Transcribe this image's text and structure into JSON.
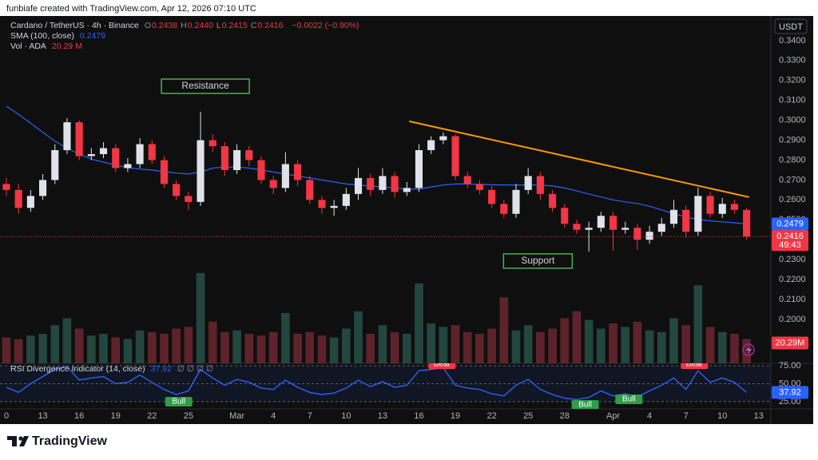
{
  "header": {
    "credit": "funbiafe created with TradingView.com, Apr 12, 2026 07:10 UTC"
  },
  "footer": {
    "brand": "TradingView"
  },
  "chart_data": [
    {
      "type": "candlestick",
      "legend": {
        "symbol": "Cardano / TetherUS · 4h · Binance",
        "fields": [
          {
            "key": "O",
            "value": "0.2438"
          },
          {
            "key": "H",
            "value": "0.2440"
          },
          {
            "key": "L",
            "value": "0.2415"
          },
          {
            "key": "C",
            "value": "0.2416"
          }
        ],
        "change": "−0.0022 (−0.90%)"
      },
      "y_unit": "USDT",
      "up_color": "#dfe2ea",
      "down_color": "#f23645",
      "x": [
        0,
        1,
        2,
        3,
        4,
        5,
        6,
        7,
        8,
        9,
        10,
        11,
        12,
        13,
        14,
        15,
        16,
        17,
        18,
        19,
        20,
        21,
        22,
        23,
        24,
        25,
        26,
        27,
        28,
        29,
        30,
        31,
        32,
        33,
        34,
        35,
        36,
        37,
        38,
        39,
        40,
        41,
        42,
        43,
        44,
        45,
        46,
        47,
        48,
        49,
        50,
        51,
        52,
        53,
        54,
        55,
        56,
        57,
        58,
        59,
        60,
        61
      ],
      "open": [
        0.268,
        0.265,
        0.256,
        0.262,
        0.27,
        0.285,
        0.299,
        0.282,
        0.283,
        0.286,
        0.276,
        0.278,
        0.288,
        0.28,
        0.268,
        0.262,
        0.259,
        0.29,
        0.287,
        0.275,
        0.285,
        0.28,
        0.27,
        0.266,
        0.278,
        0.27,
        0.26,
        0.256,
        0.257,
        0.263,
        0.271,
        0.265,
        0.272,
        0.264,
        0.266,
        0.285,
        0.29,
        0.292,
        0.272,
        0.268,
        0.265,
        0.258,
        0.253,
        0.265,
        0.272,
        0.263,
        0.256,
        0.248,
        0.245,
        0.246,
        0.252,
        0.245,
        0.246,
        0.24,
        0.244,
        0.248,
        0.255,
        0.244,
        0.262,
        0.253,
        0.258,
        0.255
      ],
      "high": [
        0.271,
        0.268,
        0.265,
        0.273,
        0.288,
        0.301,
        0.3,
        0.286,
        0.289,
        0.288,
        0.281,
        0.291,
        0.29,
        0.282,
        0.27,
        0.264,
        0.3043,
        0.293,
        0.289,
        0.288,
        0.287,
        0.282,
        0.272,
        0.284,
        0.28,
        0.272,
        0.262,
        0.26,
        0.266,
        0.276,
        0.273,
        0.276,
        0.274,
        0.269,
        0.288,
        0.292,
        0.2939,
        0.293,
        0.274,
        0.27,
        0.267,
        0.26,
        0.268,
        0.276,
        0.274,
        0.265,
        0.258,
        0.25,
        0.249,
        0.254,
        0.254,
        0.249,
        0.248,
        0.247,
        0.251,
        0.26,
        0.257,
        0.2662,
        0.264,
        0.261,
        0.26,
        0.256
      ],
      "low": [
        0.262,
        0.253,
        0.254,
        0.26,
        0.268,
        0.283,
        0.28,
        0.28,
        0.281,
        0.274,
        0.274,
        0.276,
        0.278,
        0.266,
        0.26,
        0.255,
        0.257,
        0.284,
        0.272,
        0.273,
        0.277,
        0.268,
        0.263,
        0.264,
        0.267,
        0.258,
        0.253,
        0.252,
        0.255,
        0.26,
        0.262,
        0.263,
        0.261,
        0.262,
        0.264,
        0.283,
        0.288,
        0.27,
        0.266,
        0.263,
        0.256,
        0.251,
        0.251,
        0.263,
        0.26,
        0.254,
        0.246,
        0.243,
        0.2341,
        0.244,
        0.2345,
        0.243,
        0.235,
        0.238,
        0.242,
        0.246,
        0.241,
        0.242,
        0.251,
        0.251,
        0.253,
        0.24
      ],
      "close": [
        0.265,
        0.256,
        0.262,
        0.27,
        0.285,
        0.299,
        0.282,
        0.283,
        0.286,
        0.276,
        0.278,
        0.288,
        0.28,
        0.268,
        0.262,
        0.259,
        0.29,
        0.287,
        0.275,
        0.285,
        0.28,
        0.27,
        0.266,
        0.278,
        0.27,
        0.26,
        0.256,
        0.257,
        0.263,
        0.271,
        0.265,
        0.272,
        0.264,
        0.266,
        0.285,
        0.29,
        0.292,
        0.272,
        0.268,
        0.265,
        0.258,
        0.253,
        0.265,
        0.272,
        0.263,
        0.256,
        0.248,
        0.245,
        0.246,
        0.252,
        0.245,
        0.246,
        0.24,
        0.244,
        0.248,
        0.255,
        0.244,
        0.262,
        0.253,
        0.258,
        0.255,
        0.2416
      ],
      "series": [
        {
          "name": "SMA (100, close)",
          "legend_value": "0.2479",
          "color": "#2962ff",
          "values": [
            0.3071,
            0.303,
            0.2985,
            0.294,
            0.2895,
            0.286,
            0.283,
            0.2805,
            0.279,
            0.2775,
            0.2762,
            0.2755,
            0.275,
            0.2742,
            0.2735,
            0.273,
            0.274,
            0.276,
            0.2765,
            0.2765,
            0.276,
            0.275,
            0.274,
            0.273,
            0.272,
            0.271,
            0.27,
            0.269,
            0.268,
            0.2675,
            0.267,
            0.2665,
            0.266,
            0.2655,
            0.2654,
            0.2665,
            0.2675,
            0.268,
            0.268,
            0.2678,
            0.2676,
            0.2675,
            0.2675,
            0.2675,
            0.2675,
            0.267,
            0.266,
            0.2645,
            0.263,
            0.2615,
            0.26,
            0.259,
            0.2582,
            0.2568,
            0.255,
            0.253,
            0.2515,
            0.2501,
            0.2495,
            0.249,
            0.2485,
            0.2479
          ]
        },
        {
          "name": "Vol · ADA",
          "legend_value": "20.29 M",
          "axis_label": "20.29M",
          "axis": "y2",
          "up_color": "#23463f",
          "down_color": "#5e232a",
          "values": [
            150,
            140,
            160,
            170,
            220,
            260,
            200,
            160,
            170,
            150,
            140,
            190,
            180,
            170,
            200,
            210,
            520,
            240,
            180,
            190,
            170,
            160,
            180,
            290,
            170,
            180,
            160,
            150,
            200,
            300,
            170,
            220,
            180,
            170,
            460,
            230,
            210,
            220,
            180,
            170,
            200,
            380,
            190,
            220,
            180,
            200,
            260,
            300,
            250,
            200,
            230,
            210,
            240,
            190,
            180,
            260,
            220,
            450,
            210,
            180,
            170,
            140
          ]
        }
      ],
      "last_price": {
        "label": "0.2416",
        "countdown": "49:43"
      },
      "trend_line": {
        "color": "#ff9800",
        "x": [
          33.2,
          61.2
        ],
        "values": [
          0.2995,
          0.2614
        ]
      },
      "annotations": [
        {
          "text": "Resistance",
          "x": 16.4,
          "y": 0.3171
        },
        {
          "text": "Support",
          "x": 43.8,
          "y": 0.2293
        }
      ],
      "xlim": [
        0,
        63
      ],
      "xticks": [
        {
          "value": 0,
          "label": "0"
        },
        {
          "value": 3,
          "label": "13"
        },
        {
          "value": 6,
          "label": "16"
        },
        {
          "value": 9,
          "label": "19"
        },
        {
          "value": 12,
          "label": "22"
        },
        {
          "value": 15,
          "label": "25"
        },
        {
          "value": 19,
          "label": "Mar"
        },
        {
          "value": 22,
          "label": "4"
        },
        {
          "value": 25,
          "label": "7"
        },
        {
          "value": 28,
          "label": "10"
        },
        {
          "value": 31,
          "label": "13"
        },
        {
          "value": 34,
          "label": "16"
        },
        {
          "value": 37,
          "label": "19"
        },
        {
          "value": 40,
          "label": "22"
        },
        {
          "value": 43,
          "label": "25"
        },
        {
          "value": 46,
          "label": "28"
        },
        {
          "value": 50,
          "label": "Apr"
        },
        {
          "value": 53,
          "label": "4"
        },
        {
          "value": 56,
          "label": "7"
        },
        {
          "value": 59,
          "label": "10"
        },
        {
          "value": 62,
          "label": "13"
        }
      ],
      "ylim": [
        0.1779,
        0.3524
      ],
      "yticks": [
        {
          "value": 0.2,
          "label": "0.2000"
        },
        {
          "value": 0.21,
          "label": "0.2100"
        },
        {
          "value": 0.22,
          "label": "0.2200"
        },
        {
          "value": 0.23,
          "label": "0.2300"
        },
        {
          "value": 0.24,
          "label": "0.2400"
        },
        {
          "value": 0.25,
          "label": "0.2500"
        },
        {
          "value": 0.26,
          "label": "0.2600"
        },
        {
          "value": 0.27,
          "label": "0.2700"
        },
        {
          "value": 0.28,
          "label": "0.2800"
        },
        {
          "value": 0.29,
          "label": "0.2900"
        },
        {
          "value": 0.3,
          "label": "0.3000"
        },
        {
          "value": 0.31,
          "label": "0.3100"
        },
        {
          "value": 0.32,
          "label": "0.3200"
        },
        {
          "value": 0.33,
          "label": "0.3300"
        },
        {
          "value": 0.34,
          "label": "0.3400"
        }
      ],
      "y2lim": [
        0,
        2000
      ]
    },
    {
      "type": "line",
      "title": "RSI Divergence Indicator (14, close)",
      "value_label": "37.92",
      "flags": "∅ ∅ ∅ ∅",
      "color": "#2962ff",
      "x": [
        0,
        1,
        2,
        3,
        4,
        5,
        6,
        7,
        8,
        9,
        10,
        11,
        12,
        13,
        14,
        15,
        16,
        17,
        18,
        19,
        20,
        21,
        22,
        23,
        24,
        25,
        26,
        27,
        28,
        29,
        30,
        31,
        32,
        33,
        34,
        35,
        36,
        37,
        38,
        39,
        40,
        41,
        42,
        43,
        44,
        45,
        46,
        47,
        48,
        49,
        50,
        51,
        52,
        53,
        54,
        55,
        56,
        57,
        58,
        59,
        60,
        61
      ],
      "values": [
        45,
        38,
        50,
        60,
        70,
        74,
        55,
        58,
        60,
        50,
        52,
        62,
        52,
        42,
        35,
        40,
        70,
        58,
        48,
        56,
        52,
        44,
        42,
        55,
        45,
        38,
        35,
        37,
        44,
        55,
        46,
        53,
        45,
        48,
        68,
        70,
        72,
        48,
        44,
        42,
        36,
        33,
        48,
        56,
        42,
        35,
        30,
        28,
        31,
        40,
        33,
        36,
        32,
        40,
        48,
        58,
        42,
        68,
        52,
        58,
        52,
        37.92
      ],
      "signals": [
        {
          "label": "Bull",
          "x": 14.2,
          "value": 25,
          "color": "#2e9e48"
        },
        {
          "label": "Bear",
          "x": 35.9,
          "value": 77.2,
          "color": "#f23645"
        },
        {
          "label": "Bull",
          "x": 47.7,
          "value": 20.6,
          "color": "#2e9e48"
        },
        {
          "label": "Bull",
          "x": 51.3,
          "value": 28.3,
          "color": "#2e9e48"
        },
        {
          "label": "Bear",
          "x": 56.7,
          "value": 77.2,
          "color": "#f23645"
        }
      ],
      "xlim": [
        0,
        63
      ],
      "ylim": [
        15,
        78.3
      ],
      "yticks": [
        {
          "value": 75,
          "label": "75.00"
        },
        {
          "value": 50,
          "label": "50.00"
        },
        {
          "value": 25,
          "label": "25.00"
        }
      ]
    }
  ]
}
